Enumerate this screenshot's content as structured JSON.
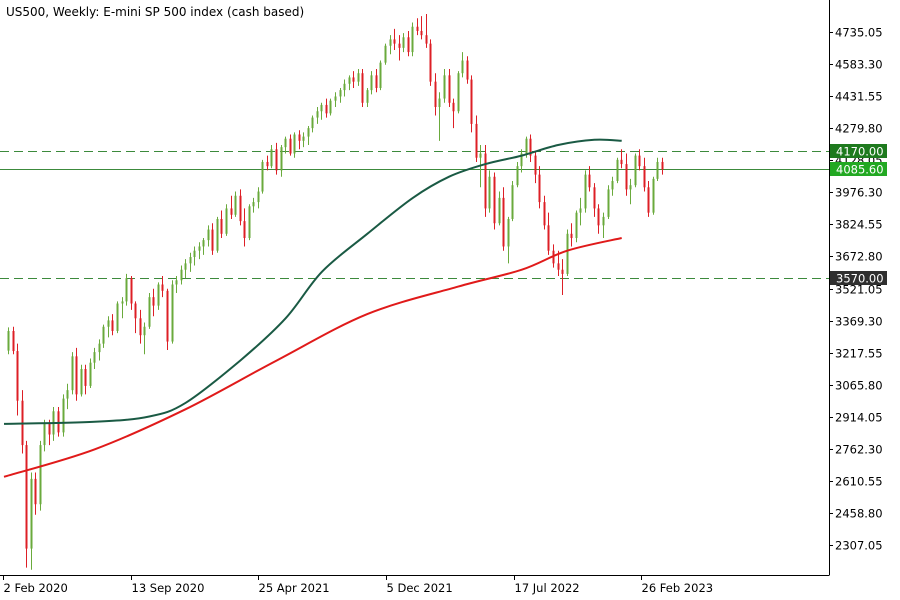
{
  "chart_data": {
    "type": "candlestick",
    "title": "US500, Weekly:  E-mini SP 500 index (cash based)",
    "timeframe": "Weekly",
    "symbol": "US500",
    "ylim": [
      2170,
      4890
    ],
    "y_ticks": [
      "4735.05",
      "4583.30",
      "4431.55",
      "4279.80",
      "4128.05",
      "3976.30",
      "3824.55",
      "3672.80",
      "3521.05",
      "3369.30",
      "3217.55",
      "3065.80",
      "2914.05",
      "2762.30",
      "2610.55",
      "2458.80",
      "2307.05"
    ],
    "x_ticks": [
      "2 Feb 2020",
      "13 Sep 2020",
      "25 Apr 2021",
      "5 Dec 2021",
      "17 Jul 2022",
      "26 Feb 2023"
    ],
    "colors": {
      "bull": "#6aaa3c",
      "bear": "#dd1f26",
      "ma_fast": "#1a5a44",
      "ma_slow": "#e01a1a",
      "level_line": "#3c8a3c",
      "current_price_bg": "#22a822"
    },
    "levels": [
      {
        "value": 4170.0,
        "label": "4170.00",
        "style": "dashed"
      },
      {
        "value": 3570.0,
        "label": "3570.00",
        "style": "dashed"
      },
      {
        "value": 4085.6,
        "label": "4085.60",
        "style": "solid",
        "current": true
      }
    ],
    "series": [
      {
        "name": "",
        "kind": "moving-average",
        "anchors": [
          [
            0,
            2880
          ],
          [
            20,
            2890
          ],
          [
            32,
            2915
          ],
          [
            40,
            2980
          ],
          [
            52,
            3180
          ],
          [
            62,
            3380
          ],
          [
            70,
            3600
          ],
          [
            80,
            3780
          ],
          [
            90,
            3950
          ],
          [
            98,
            4050
          ],
          [
            106,
            4110
          ],
          [
            114,
            4150
          ],
          [
            122,
            4200
          ],
          [
            130,
            4225
          ],
          [
            136,
            4220
          ]
        ]
      },
      {
        "name": "",
        "kind": "moving-average",
        "anchors": [
          [
            0,
            2630
          ],
          [
            20,
            2760
          ],
          [
            40,
            2950
          ],
          [
            60,
            3180
          ],
          [
            80,
            3400
          ],
          [
            100,
            3530
          ],
          [
            114,
            3610
          ],
          [
            124,
            3700
          ],
          [
            136,
            3760
          ]
        ]
      }
    ],
    "ohlc": [
      [
        3227,
        3337,
        3210,
        3320
      ],
      [
        3320,
        3340,
        3210,
        3225
      ],
      [
        3225,
        3260,
        2920,
        2990
      ],
      [
        2990,
        3040,
        2740,
        2780
      ],
      [
        2780,
        2800,
        2200,
        2290
      ],
      [
        2290,
        2650,
        2190,
        2620
      ],
      [
        2620,
        2650,
        2450,
        2500
      ],
      [
        2500,
        2800,
        2470,
        2780
      ],
      [
        2780,
        2900,
        2750,
        2880
      ],
      [
        2880,
        2900,
        2780,
        2830
      ],
      [
        2830,
        2960,
        2800,
        2940
      ],
      [
        2940,
        2960,
        2820,
        2840
      ],
      [
        2840,
        3020,
        2820,
        3000
      ],
      [
        3000,
        3070,
        2950,
        3040
      ],
      [
        3040,
        3220,
        3020,
        3200
      ],
      [
        3200,
        3240,
        2990,
        3020
      ],
      [
        3020,
        3160,
        3010,
        3140
      ],
      [
        3140,
        3160,
        3020,
        3060
      ],
      [
        3060,
        3190,
        3050,
        3170
      ],
      [
        3170,
        3240,
        3140,
        3220
      ],
      [
        3220,
        3280,
        3180,
        3260
      ],
      [
        3260,
        3350,
        3240,
        3340
      ],
      [
        3340,
        3390,
        3290,
        3370
      ],
      [
        3370,
        3400,
        3300,
        3320
      ],
      [
        3320,
        3460,
        3310,
        3450
      ],
      [
        3450,
        3480,
        3380,
        3460
      ],
      [
        3460,
        3590,
        3440,
        3570
      ],
      [
        3570,
        3580,
        3420,
        3450
      ],
      [
        3450,
        3460,
        3310,
        3380
      ],
      [
        3380,
        3420,
        3260,
        3300
      ],
      [
        3300,
        3360,
        3210,
        3340
      ],
      [
        3340,
        3500,
        3330,
        3480
      ],
      [
        3480,
        3520,
        3390,
        3440
      ],
      [
        3440,
        3550,
        3420,
        3540
      ],
      [
        3540,
        3580,
        3480,
        3510
      ],
      [
        3510,
        3520,
        3230,
        3270
      ],
      [
        3270,
        3560,
        3260,
        3540
      ],
      [
        3540,
        3580,
        3500,
        3560
      ],
      [
        3560,
        3630,
        3540,
        3610
      ],
      [
        3610,
        3660,
        3570,
        3640
      ],
      [
        3640,
        3690,
        3600,
        3670
      ],
      [
        3670,
        3720,
        3630,
        3700
      ],
      [
        3700,
        3740,
        3660,
        3720
      ],
      [
        3720,
        3760,
        3680,
        3750
      ],
      [
        3750,
        3820,
        3720,
        3800
      ],
      [
        3800,
        3830,
        3680,
        3700
      ],
      [
        3700,
        3860,
        3690,
        3850
      ],
      [
        3850,
        3890,
        3760,
        3780
      ],
      [
        3780,
        3920,
        3770,
        3900
      ],
      [
        3900,
        3960,
        3850,
        3870
      ],
      [
        3870,
        3980,
        3860,
        3960
      ],
      [
        3960,
        3990,
        3820,
        3840
      ],
      [
        3840,
        3900,
        3720,
        3760
      ],
      [
        3760,
        3920,
        3750,
        3910
      ],
      [
        3910,
        3950,
        3880,
        3930
      ],
      [
        3930,
        4000,
        3900,
        3980
      ],
      [
        3980,
        4130,
        3970,
        4120
      ],
      [
        4120,
        4150,
        4080,
        4100
      ],
      [
        4100,
        4200,
        4090,
        4180
      ],
      [
        4180,
        4210,
        4060,
        4080
      ],
      [
        4080,
        4200,
        4050,
        4190
      ],
      [
        4190,
        4240,
        4160,
        4230
      ],
      [
        4230,
        4250,
        4150,
        4160
      ],
      [
        4160,
        4260,
        4140,
        4250
      ],
      [
        4250,
        4270,
        4180,
        4220
      ],
      [
        4220,
        4260,
        4190,
        4240
      ],
      [
        4240,
        4290,
        4200,
        4280
      ],
      [
        4280,
        4340,
        4260,
        4330
      ],
      [
        4330,
        4380,
        4300,
        4360
      ],
      [
        4360,
        4400,
        4320,
        4390
      ],
      [
        4390,
        4420,
        4330,
        4350
      ],
      [
        4350,
        4420,
        4340,
        4410
      ],
      [
        4410,
        4450,
        4380,
        4430
      ],
      [
        4430,
        4470,
        4400,
        4460
      ],
      [
        4460,
        4510,
        4430,
        4490
      ],
      [
        4490,
        4530,
        4460,
        4520
      ],
      [
        4520,
        4550,
        4470,
        4500
      ],
      [
        4500,
        4560,
        4480,
        4540
      ],
      [
        4540,
        4560,
        4380,
        4400
      ],
      [
        4400,
        4470,
        4380,
        4460
      ],
      [
        4460,
        4550,
        4440,
        4530
      ],
      [
        4530,
        4560,
        4450,
        4470
      ],
      [
        4470,
        4600,
        4460,
        4590
      ],
      [
        4590,
        4680,
        4580,
        4670
      ],
      [
        4670,
        4720,
        4630,
        4700
      ],
      [
        4700,
        4750,
        4650,
        4680
      ],
      [
        4680,
        4720,
        4600,
        4660
      ],
      [
        4660,
        4730,
        4640,
        4710
      ],
      [
        4710,
        4740,
        4620,
        4640
      ],
      [
        4640,
        4780,
        4620,
        4760
      ],
      [
        4760,
        4800,
        4720,
        4740
      ],
      [
        4740,
        4810,
        4700,
        4720
      ],
      [
        4720,
        4820,
        4660,
        4680
      ],
      [
        4680,
        4700,
        4480,
        4500
      ],
      [
        4500,
        4540,
        4340,
        4380
      ],
      [
        4380,
        4450,
        4220,
        4420
      ],
      [
        4420,
        4560,
        4400,
        4530
      ],
      [
        4530,
        4560,
        4380,
        4400
      ],
      [
        4400,
        4420,
        4280,
        4360
      ],
      [
        4360,
        4550,
        4350,
        4540
      ],
      [
        4540,
        4640,
        4520,
        4600
      ],
      [
        4600,
        4620,
        4490,
        4510
      ],
      [
        4510,
        4530,
        4260,
        4300
      ],
      [
        4300,
        4340,
        4120,
        4140
      ],
      [
        4140,
        4200,
        4000,
        4160
      ],
      [
        4160,
        4200,
        3860,
        3900
      ],
      [
        3900,
        4080,
        3880,
        4050
      ],
      [
        4050,
        4070,
        3800,
        3830
      ],
      [
        3830,
        3980,
        3820,
        3950
      ],
      [
        3950,
        4000,
        3700,
        3720
      ],
      [
        3720,
        3860,
        3640,
        3850
      ],
      [
        3850,
        4030,
        3840,
        4010
      ],
      [
        4010,
        4120,
        4000,
        4100
      ],
      [
        4100,
        4180,
        4070,
        4160
      ],
      [
        4160,
        4240,
        4140,
        4230
      ],
      [
        4230,
        4250,
        4120,
        4150
      ],
      [
        4150,
        4170,
        4020,
        4060
      ],
      [
        4060,
        4100,
        3900,
        3930
      ],
      [
        3930,
        3960,
        3800,
        3820
      ],
      [
        3820,
        3880,
        3680,
        3700
      ],
      [
        3700,
        3730,
        3620,
        3640
      ],
      [
        3640,
        3700,
        3580,
        3610
      ],
      [
        3610,
        3660,
        3490,
        3590
      ],
      [
        3590,
        3800,
        3580,
        3780
      ],
      [
        3780,
        3830,
        3720,
        3760
      ],
      [
        3760,
        3890,
        3740,
        3880
      ],
      [
        3880,
        3950,
        3820,
        3900
      ],
      [
        3900,
        4080,
        3880,
        4060
      ],
      [
        4060,
        4100,
        3980,
        4000
      ],
      [
        4000,
        4020,
        3860,
        3900
      ],
      [
        3900,
        3920,
        3780,
        3820
      ],
      [
        3820,
        3880,
        3760,
        3860
      ],
      [
        3860,
        4010,
        3850,
        3990
      ],
      [
        3990,
        4050,
        3960,
        4030
      ],
      [
        4030,
        4140,
        4020,
        4130
      ],
      [
        4130,
        4180,
        4090,
        4110
      ],
      [
        4110,
        4160,
        3960,
        3990
      ],
      [
        3990,
        4040,
        3920,
        4010
      ],
      [
        4010,
        4160,
        4000,
        4150
      ],
      [
        4150,
        4180,
        4080,
        4100
      ],
      [
        4100,
        4140,
        3980,
        4000
      ],
      [
        4000,
        4030,
        3860,
        3880
      ],
      [
        3880,
        4050,
        3870,
        4040
      ],
      [
        4040,
        4140,
        4030,
        4120
      ],
      [
        4120,
        4140,
        4060,
        4085.6
      ]
    ]
  }
}
